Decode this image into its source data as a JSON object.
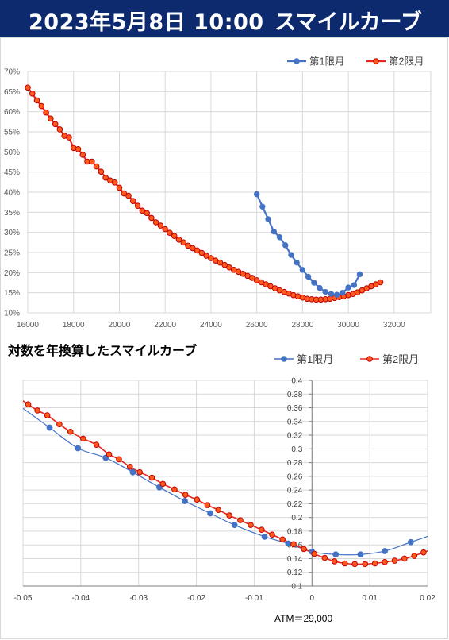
{
  "header": {
    "datetime": "2023年5月8日 10:00",
    "title": "スマイルカーブ",
    "background": "#0d2a6e"
  },
  "chart_data": [
    {
      "type": "line",
      "title": "",
      "legend_position": "top-right",
      "grid": true,
      "x_ticks": [
        "16000",
        "18000",
        "20000",
        "22000",
        "24000",
        "26000",
        "28000",
        "30000",
        "32000"
      ],
      "y_ticks": [
        "10%",
        "15%",
        "20%",
        "25%",
        "30%",
        "35%",
        "40%",
        "45%",
        "50%",
        "55%",
        "60%",
        "65%",
        "70%"
      ],
      "xlim": [
        16000,
        33600
      ],
      "ylim": [
        10,
        70
      ],
      "series": [
        {
          "name": "第1限月",
          "color": "#4472c4",
          "points": [
            [
              26000,
              39.5
            ],
            [
              26250,
              36.4
            ],
            [
              26500,
              33.3
            ],
            [
              26750,
              30.2
            ],
            [
              27000,
              28.8
            ],
            [
              27250,
              26.8
            ],
            [
              27500,
              24.4
            ],
            [
              27750,
              22.5
            ],
            [
              28000,
              20.7
            ],
            [
              28250,
              19.0
            ],
            [
              28500,
              17.5
            ],
            [
              28750,
              16.2
            ],
            [
              29000,
              15.2
            ],
            [
              29250,
              14.7
            ],
            [
              29500,
              14.5
            ],
            [
              29750,
              15.0
            ],
            [
              30000,
              16.3
            ],
            [
              30250,
              16.9
            ],
            [
              30500,
              19.6
            ]
          ]
        },
        {
          "name": "第2限月",
          "color": "#e8281e",
          "points": [
            [
              16000,
              66.0
            ],
            [
              16200,
              64.5
            ],
            [
              16400,
              62.8
            ],
            [
              16600,
              61.4
            ],
            [
              16800,
              59.8
            ],
            [
              17000,
              58.3
            ],
            [
              17200,
              56.9
            ],
            [
              17400,
              55.6
            ],
            [
              17600,
              54.0
            ],
            [
              17800,
              53.6
            ],
            [
              18000,
              51.0
            ],
            [
              18200,
              50.7
            ],
            [
              18400,
              49.3
            ],
            [
              18600,
              47.6
            ],
            [
              18800,
              47.6
            ],
            [
              19000,
              46.4
            ],
            [
              19200,
              45.1
            ],
            [
              19400,
              43.6
            ],
            [
              19600,
              42.9
            ],
            [
              19800,
              42.4
            ],
            [
              20000,
              41.1
            ],
            [
              20200,
              39.7
            ],
            [
              20400,
              39.1
            ],
            [
              20600,
              37.8
            ],
            [
              20800,
              36.6
            ],
            [
              21000,
              35.4
            ],
            [
              21200,
              34.8
            ],
            [
              21400,
              33.6
            ],
            [
              21600,
              32.5
            ],
            [
              21800,
              31.7
            ],
            [
              22000,
              30.8
            ],
            [
              22200,
              29.9
            ],
            [
              22400,
              29.1
            ],
            [
              22600,
              28.2
            ],
            [
              22800,
              27.5
            ],
            [
              23000,
              26.7
            ],
            [
              23200,
              26.1
            ],
            [
              23400,
              25.5
            ],
            [
              23600,
              24.9
            ],
            [
              23800,
              24.2
            ],
            [
              24000,
              23.6
            ],
            [
              24200,
              23.0
            ],
            [
              24400,
              22.5
            ],
            [
              24600,
              21.9
            ],
            [
              24800,
              21.3
            ],
            [
              25000,
              20.7
            ],
            [
              25200,
              20.2
            ],
            [
              25400,
              19.7
            ],
            [
              25600,
              19.2
            ],
            [
              25800,
              18.7
            ],
            [
              26000,
              18.1
            ],
            [
              26200,
              17.6
            ],
            [
              26400,
              17.1
            ],
            [
              26600,
              16.6
            ],
            [
              26800,
              16.1
            ],
            [
              27000,
              15.6
            ],
            [
              27200,
              15.2
            ],
            [
              27400,
              14.8
            ],
            [
              27600,
              14.4
            ],
            [
              27800,
              14.1
            ],
            [
              28000,
              13.8
            ],
            [
              28200,
              13.5
            ],
            [
              28400,
              13.4
            ],
            [
              28600,
              13.3
            ],
            [
              28800,
              13.3
            ],
            [
              29000,
              13.4
            ],
            [
              29200,
              13.5
            ],
            [
              29400,
              13.7
            ],
            [
              29600,
              13.9
            ],
            [
              29800,
              14.1
            ],
            [
              30000,
              14.4
            ],
            [
              30200,
              14.7
            ],
            [
              30400,
              15.1
            ],
            [
              30600,
              15.6
            ],
            [
              30800,
              16.1
            ],
            [
              31000,
              16.6
            ],
            [
              31200,
              17.1
            ],
            [
              31400,
              17.6
            ]
          ]
        }
      ]
    },
    {
      "type": "scatter",
      "title": "対数を年換算したスマイルカーブ",
      "legend_position": "top",
      "grid": true,
      "x_ticks": [
        "-0.05",
        "-0.04",
        "-0.03",
        "-0.02",
        "-0.01",
        "0",
        "0.01",
        "0.02"
      ],
      "y_ticks": [
        "0.1",
        "0.12",
        "0.14",
        "0.16",
        "0.18",
        "0.2",
        "0.22",
        "0.24",
        "0.26",
        "0.28",
        "0.3",
        "0.32",
        "0.34",
        "0.36",
        "0.38",
        "0.4"
      ],
      "xlim": [
        -0.05,
        0.02
      ],
      "ylim": [
        0.1,
        0.4
      ],
      "annotation": "ATM＝29,000",
      "series": [
        {
          "name": "第1限月",
          "color": "#4472c4",
          "points": [
            [
              -0.0454,
              0.331
            ],
            [
              -0.0405,
              0.301
            ],
            [
              -0.0357,
              0.287
            ],
            [
              -0.031,
              0.266
            ],
            [
              -0.0264,
              0.244
            ],
            [
              -0.022,
              0.224
            ],
            [
              -0.0176,
              0.206
            ],
            [
              -0.0134,
              0.189
            ],
            [
              -0.0082,
              0.172
            ],
            [
              -0.0041,
              0.162
            ],
            [
              0,
              0.15
            ],
            [
              0.0041,
              0.146
            ],
            [
              0.0084,
              0.146
            ],
            [
              0.0126,
              0.151
            ],
            [
              0.0171,
              0.164
            ]
          ]
        },
        {
          "name": "第2限月",
          "color": "#e8281e",
          "points": [
            [
              -0.0491,
              0.365
            ],
            [
              -0.0475,
              0.356
            ],
            [
              -0.0458,
              0.349
            ],
            [
              -0.0437,
              0.336
            ],
            [
              -0.0418,
              0.325
            ],
            [
              -0.0396,
              0.315
            ],
            [
              -0.0373,
              0.306
            ],
            [
              -0.0351,
              0.292
            ],
            [
              -0.0334,
              0.285
            ],
            [
              -0.0315,
              0.274
            ],
            [
              -0.0298,
              0.266
            ],
            [
              -0.0277,
              0.258
            ],
            [
              -0.0258,
              0.249
            ],
            [
              -0.0238,
              0.241
            ],
            [
              -0.0219,
              0.233
            ],
            [
              -0.0199,
              0.226
            ],
            [
              -0.0181,
              0.218
            ],
            [
              -0.0162,
              0.211
            ],
            [
              -0.0143,
              0.203
            ],
            [
              -0.0124,
              0.196
            ],
            [
              -0.0106,
              0.189
            ],
            [
              -0.0087,
              0.182
            ],
            [
              -0.0069,
              0.175
            ],
            [
              -0.0051,
              0.168
            ],
            [
              -0.0032,
              0.161
            ],
            [
              -0.0014,
              0.154
            ],
            [
              0.0004,
              0.147
            ],
            [
              0.0022,
              0.141
            ],
            [
              0.0039,
              0.136
            ],
            [
              0.0057,
              0.133
            ],
            [
              0.0074,
              0.132
            ],
            [
              0.0092,
              0.132
            ],
            [
              0.0109,
              0.133
            ],
            [
              0.0126,
              0.135
            ],
            [
              0.0143,
              0.137
            ],
            [
              0.016,
              0.14
            ],
            [
              0.0177,
              0.144
            ],
            [
              0.0193,
              0.149
            ]
          ]
        }
      ]
    }
  ]
}
